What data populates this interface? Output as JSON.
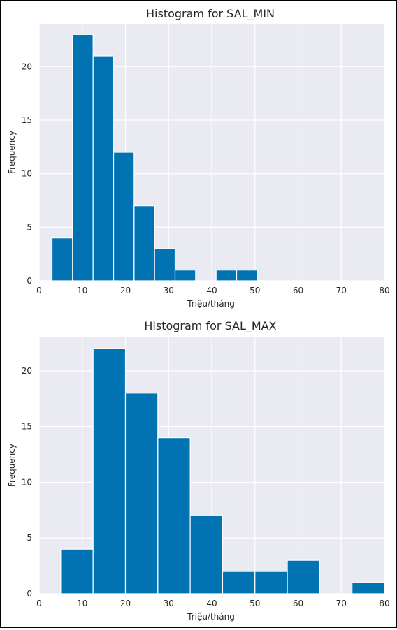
{
  "chart_data": [
    {
      "type": "bar",
      "title": "Histogram for SAL_MIN",
      "xlabel": "Triệu/tháng",
      "ylabel": "Frequency",
      "xlim": [
        0,
        80
      ],
      "ylim": [
        0,
        24
      ],
      "xticks": [
        "0",
        "10",
        "20",
        "30",
        "40",
        "50",
        "60",
        "70",
        "80"
      ],
      "yticks": [
        "0",
        "5",
        "10",
        "15",
        "20"
      ],
      "bins": [
        {
          "x0": 3.0,
          "x1": 7.75,
          "count": 4
        },
        {
          "x0": 7.75,
          "x1": 12.5,
          "count": 23
        },
        {
          "x0": 12.5,
          "x1": 17.25,
          "count": 21
        },
        {
          "x0": 17.25,
          "x1": 22.0,
          "count": 12
        },
        {
          "x0": 22.0,
          "x1": 26.75,
          "count": 7
        },
        {
          "x0": 26.75,
          "x1": 31.5,
          "count": 3
        },
        {
          "x0": 31.5,
          "x1": 36.25,
          "count": 1
        },
        {
          "x0": 36.25,
          "x1": 41.0,
          "count": 0
        },
        {
          "x0": 41.0,
          "x1": 45.75,
          "count": 1
        },
        {
          "x0": 45.75,
          "x1": 50.5,
          "count": 1
        }
      ],
      "grid": true,
      "bar_color": "#0173b2",
      "background_color": "#eaeaf2"
    },
    {
      "type": "bar",
      "title": "Histogram for SAL_MAX",
      "xlabel": "Triệu/tháng",
      "ylabel": "Frequency",
      "xlim": [
        0,
        80
      ],
      "ylim": [
        0,
        23
      ],
      "xticks": [
        "0",
        "10",
        "20",
        "30",
        "40",
        "50",
        "60",
        "70",
        "80"
      ],
      "yticks": [
        "0",
        "5",
        "10",
        "15",
        "20"
      ],
      "bins": [
        {
          "x0": 5.0,
          "x1": 12.5,
          "count": 4
        },
        {
          "x0": 12.5,
          "x1": 20.0,
          "count": 22
        },
        {
          "x0": 20.0,
          "x1": 27.5,
          "count": 18
        },
        {
          "x0": 27.5,
          "x1": 35.0,
          "count": 14
        },
        {
          "x0": 35.0,
          "x1": 42.5,
          "count": 7
        },
        {
          "x0": 42.5,
          "x1": 50.0,
          "count": 2
        },
        {
          "x0": 50.0,
          "x1": 57.5,
          "count": 2
        },
        {
          "x0": 57.5,
          "x1": 65.0,
          "count": 3
        },
        {
          "x0": 65.0,
          "x1": 72.5,
          "count": 0
        },
        {
          "x0": 72.5,
          "x1": 80.0,
          "count": 1
        }
      ],
      "grid": true,
      "bar_color": "#0173b2",
      "background_color": "#eaeaf2"
    }
  ]
}
